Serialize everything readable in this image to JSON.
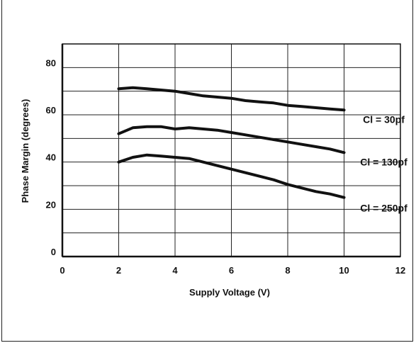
{
  "chart_data": {
    "type": "line",
    "title": "",
    "xlabel": "Supply Voltage (V)",
    "ylabel": "Phase Margin (degrees)",
    "xlim": [
      0,
      12
    ],
    "ylim": [
      0,
      90
    ],
    "x_ticks": [
      "0",
      "2",
      "4",
      "6",
      "8",
      "10",
      "12"
    ],
    "y_ticks": [
      "0",
      "20",
      "40",
      "60",
      "80"
    ],
    "grid": true,
    "series": [
      {
        "name": "Cl = 30pf",
        "x": [
          2,
          2.5,
          3,
          3.5,
          4,
          4.5,
          5,
          5.5,
          6,
          6.5,
          7,
          7.5,
          8,
          8.5,
          9,
          9.5,
          10
        ],
        "values": [
          71,
          71.5,
          71,
          70.5,
          70,
          69,
          68,
          67.5,
          67,
          66,
          65.5,
          65,
          64,
          63.5,
          63,
          62.5,
          62
        ]
      },
      {
        "name": "Cl = 130pf",
        "x": [
          2,
          2.5,
          3,
          3.5,
          4,
          4.5,
          5,
          5.5,
          6,
          6.5,
          7,
          7.5,
          8,
          8.5,
          9,
          9.5,
          10
        ],
        "values": [
          52,
          54.5,
          55,
          55,
          54,
          54.5,
          54,
          53.5,
          52.5,
          51.5,
          50.5,
          49.5,
          48.5,
          47.5,
          46.5,
          45.5,
          44
        ]
      },
      {
        "name": "Cl = 250pf",
        "x": [
          2,
          2.5,
          3,
          3.5,
          4,
          4.5,
          5,
          5.5,
          6,
          6.5,
          7,
          7.5,
          8,
          8.5,
          9,
          9.5,
          10
        ],
        "values": [
          40,
          42,
          43,
          42.5,
          42,
          41.5,
          40,
          38.5,
          37,
          35.5,
          34,
          32.5,
          30.5,
          29,
          27.5,
          26.5,
          25
        ]
      }
    ],
    "annotations": [
      "Cl = 30pf",
      "Cl = 130pf",
      "Cl = 250pf"
    ],
    "colors": {
      "line": "#111111",
      "grid": "#222222"
    }
  }
}
